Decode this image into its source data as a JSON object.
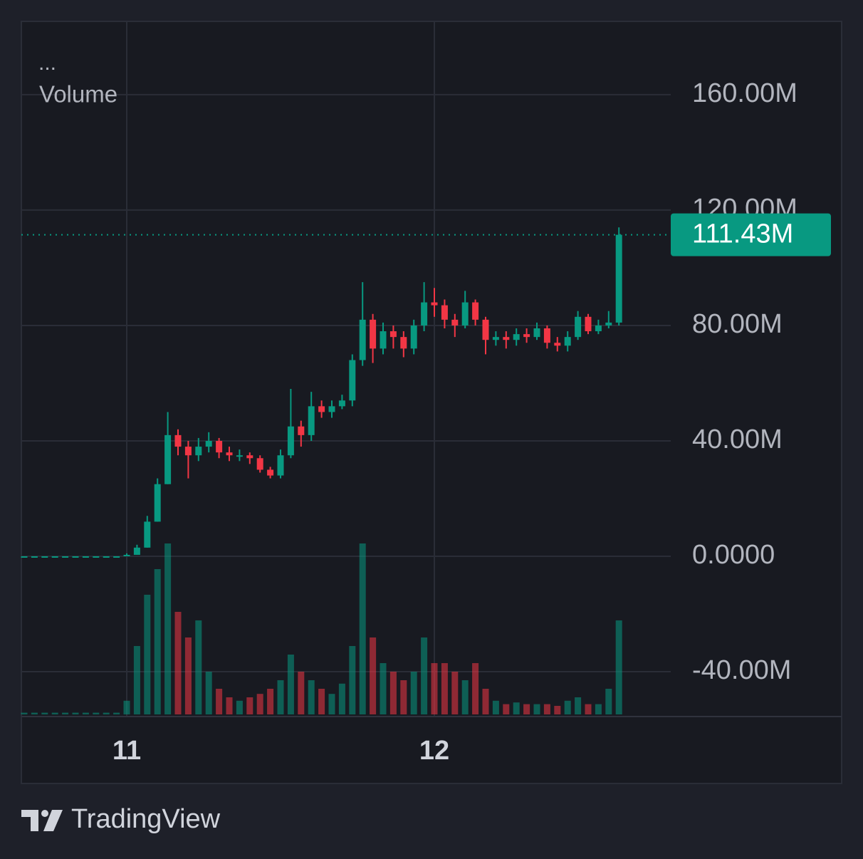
{
  "chart_data": {
    "type": "candlestick",
    "legend_dots": "...",
    "legend_title": "Volume",
    "brand": "TradingView",
    "up_color": "#089981",
    "down_color": "#f23645",
    "grid": true,
    "categories": [
      null,
      null,
      null,
      null,
      null,
      null,
      null,
      null,
      null,
      null,
      "11",
      null,
      null,
      null,
      null,
      null,
      null,
      null,
      null,
      null,
      null,
      null,
      null,
      null,
      null,
      null,
      null,
      null,
      null,
      null,
      null,
      null,
      null,
      null,
      null,
      null,
      null,
      null,
      null,
      null,
      "12",
      null,
      null,
      null,
      null,
      null,
      null,
      null,
      null,
      null,
      null,
      null,
      null,
      null,
      null,
      null,
      null,
      null,
      null
    ],
    "open": [
      0,
      0,
      0,
      0,
      0,
      0,
      0,
      0,
      0,
      0,
      0,
      0.5,
      3,
      12,
      25,
      42,
      38,
      35,
      38,
      40,
      36,
      35,
      35,
      34,
      30,
      28,
      35,
      45,
      42,
      52,
      50,
      52,
      54,
      68,
      82,
      72,
      78,
      76,
      72,
      80,
      88,
      87,
      82,
      80,
      88,
      82,
      75,
      76,
      75,
      77,
      76,
      79,
      74,
      73,
      76,
      83,
      78,
      80,
      81
    ],
    "high": [
      0,
      0,
      0,
      0,
      0,
      0,
      0,
      0,
      0,
      0,
      1,
      4,
      14,
      27,
      50,
      44,
      40,
      41,
      43,
      41,
      38,
      37,
      36,
      35,
      31,
      37,
      58,
      47,
      57,
      54,
      54,
      56,
      70,
      95,
      84,
      81,
      80,
      78,
      82,
      95,
      93,
      89,
      84,
      92,
      89,
      83,
      78,
      78,
      79,
      79,
      81,
      80,
      76,
      78,
      85,
      84,
      82,
      85,
      114
    ],
    "low": [
      0,
      0,
      0,
      0,
      0,
      0,
      0,
      0,
      0,
      0,
      0,
      0.5,
      3,
      12,
      25,
      35,
      27,
      33,
      36,
      34,
      33,
      33,
      32,
      29,
      27,
      27,
      34,
      38,
      40,
      48,
      48,
      51,
      52,
      66,
      67,
      70,
      72,
      69,
      70,
      78,
      83,
      79,
      76,
      79,
      80,
      70,
      73,
      72,
      73,
      74,
      75,
      72,
      71,
      71,
      75,
      77,
      77,
      79,
      80
    ],
    "close": [
      0,
      0,
      0,
      0,
      0,
      0,
      0,
      0,
      0,
      0,
      0.5,
      3,
      12,
      25,
      42,
      38,
      35,
      38,
      40,
      36,
      35,
      35,
      34,
      30,
      28,
      35,
      45,
      42,
      52,
      50,
      52,
      54,
      68,
      82,
      72,
      78,
      76,
      72,
      80,
      88,
      87,
      82,
      80,
      88,
      82,
      75,
      76,
      75,
      77,
      76,
      79,
      74,
      73,
      76,
      83,
      78,
      80,
      81,
      111.43
    ],
    "volume": [
      1,
      1,
      1,
      1,
      1,
      1,
      1,
      1,
      1,
      1,
      8,
      40,
      70,
      85,
      100,
      60,
      45,
      55,
      25,
      15,
      10,
      8,
      10,
      12,
      15,
      20,
      35,
      25,
      20,
      15,
      12,
      18,
      40,
      100,
      45,
      30,
      25,
      20,
      25,
      45,
      30,
      30,
      25,
      20,
      30,
      15,
      8,
      6,
      7,
      6,
      6,
      6,
      5,
      8,
      10,
      6,
      6,
      15,
      55
    ],
    "ylim": [
      -55.3,
      185.4
    ],
    "yticks": [
      {
        "value": -40,
        "label": "-40.00M"
      },
      {
        "value": 0,
        "label": "0.0000"
      },
      {
        "value": 40,
        "label": "40.00M"
      },
      {
        "value": 80,
        "label": "80.00M"
      },
      {
        "value": 120,
        "label": "120.00M"
      },
      {
        "value": 160,
        "label": "160.00M"
      }
    ],
    "last_price": {
      "value": 111.43,
      "label": "111.43M"
    }
  }
}
